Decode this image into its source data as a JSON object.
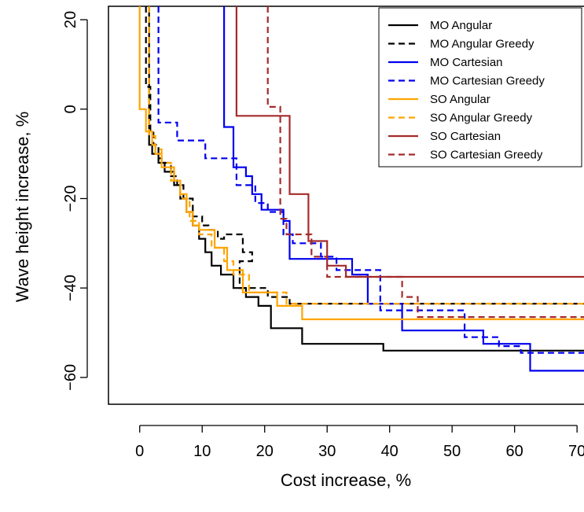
{
  "chart_data": {
    "type": "line",
    "title": "",
    "xlabel": "Cost increase, %",
    "ylabel": "Wave height increase, %",
    "xlim": [
      -5,
      73
    ],
    "ylim": [
      -66,
      23
    ],
    "xticks": [
      0,
      10,
      20,
      30,
      40,
      50,
      60,
      70
    ],
    "yticks": [
      -60,
      -40,
      -20,
      0,
      20
    ],
    "legend_position": "top-right",
    "grid": false,
    "series": [
      {
        "name": "MO Angular",
        "color": "#000000",
        "dash": "solid",
        "x": [
          1.5,
          1.5,
          2.0,
          2.0,
          3.0,
          3.0,
          4.0,
          4.0,
          5.5,
          5.5,
          6.5,
          6.5,
          7.5,
          7.5,
          8.5,
          8.5,
          9.5,
          9.5,
          10.5,
          10.5,
          11.5,
          11.5,
          13.0,
          13.0,
          15.0,
          15.0,
          17.0,
          17.0,
          19.0,
          19.0,
          21.0,
          21.0,
          26.0,
          26.0,
          39.0,
          39.0,
          73.0
        ],
        "y": [
          23,
          -8,
          -8,
          -10,
          -10,
          -12,
          -12,
          -14,
          -14,
          -17,
          -17,
          -20,
          -20,
          -23,
          -23,
          -26,
          -26,
          -29,
          -29,
          -32,
          -32,
          -35,
          -35,
          -37,
          -37,
          -40,
          -40,
          -42,
          -42,
          -44,
          -44,
          -49,
          -49,
          -52.5,
          -52.5,
          -54,
          -54
        ]
      },
      {
        "name": "MO Angular Greedy",
        "color": "#000000",
        "dash": "8,5",
        "x": [
          1.0,
          1.0,
          1.7,
          1.7,
          2.2,
          2.2,
          3.0,
          3.0,
          3.5,
          3.5,
          5.0,
          5.0,
          6.0,
          6.0,
          7.0,
          7.0,
          8.5,
          8.5,
          10.0,
          10.0,
          11.0,
          11.0,
          12.5,
          12.5,
          13.5,
          13.5,
          16.5,
          16.5,
          18.0,
          18.0,
          16.0,
          16.0,
          20.5,
          20.5,
          24.0,
          24.0,
          73.0
        ],
        "y": [
          23,
          5,
          5,
          -5,
          -5,
          -8,
          -8,
          -11,
          -11,
          -12,
          -12,
          -15,
          -15,
          -17,
          -17,
          -20,
          -20,
          -24,
          -24,
          -26,
          -26,
          -27,
          -27,
          -29,
          -29,
          -28,
          -28,
          -32,
          -32,
          -34,
          -34,
          -40,
          -40,
          -42,
          -42,
          -43.5,
          -43.5
        ]
      },
      {
        "name": "MO Cartesian",
        "color": "#0000ee",
        "dash": "solid",
        "x": [
          13.5,
          13.5,
          15.0,
          15.0,
          17.0,
          17.0,
          18.0,
          18.0,
          19.5,
          19.5,
          23.0,
          23.0,
          24.0,
          24.0,
          34.0,
          34.0,
          36.5,
          36.5,
          42.0,
          42.0,
          55.0,
          55.0,
          62.5,
          62.5,
          73.0
        ],
        "y": [
          23,
          -4,
          -4,
          -13,
          -13,
          -15,
          -15,
          -19,
          -19,
          -22.5,
          -22.5,
          -25,
          -25,
          -33.5,
          -33.5,
          -37,
          -37,
          -43.5,
          -43.5,
          -49.5,
          -49.5,
          -52.5,
          -52.5,
          -58.5,
          -58.5
        ]
      },
      {
        "name": "MO Cartesian Greedy",
        "color": "#0000ee",
        "dash": "8,5",
        "x": [
          3.0,
          3.0,
          6.0,
          6.0,
          10.5,
          10.5,
          15.5,
          15.5,
          18.5,
          18.5,
          20.5,
          20.5,
          23.0,
          23.0,
          24.5,
          24.5,
          29.0,
          29.0,
          31.5,
          31.5,
          38.5,
          38.5,
          52.0,
          52.0,
          57.5,
          57.5,
          61.0,
          61.0,
          73.0
        ],
        "y": [
          23,
          -3,
          -3,
          -7,
          -7,
          -11,
          -11,
          -17,
          -17,
          -21,
          -21,
          -23,
          -23,
          -28,
          -28,
          -30,
          -30,
          -33,
          -33,
          -36,
          -36,
          -45,
          -45,
          -51,
          -51,
          -53,
          -53,
          -54.5,
          -54.5
        ]
      },
      {
        "name": "SO Angular",
        "color": "#ffa500",
        "dash": "solid",
        "x": [
          0.0,
          0.0,
          1.0,
          1.0,
          2.0,
          2.0,
          2.5,
          2.5,
          3.5,
          3.5,
          5.5,
          5.5,
          6.5,
          6.5,
          7.5,
          7.5,
          8.5,
          8.5,
          9.5,
          9.5,
          12.0,
          12.0,
          14.0,
          14.0,
          16.5,
          16.5,
          22.0,
          22.0,
          26.0,
          26.0,
          73.0
        ],
        "y": [
          23,
          0,
          0,
          -5,
          -5,
          -8,
          -8,
          -10,
          -10,
          -13,
          -13,
          -16,
          -16,
          -19,
          -19,
          -23,
          -23,
          -26,
          -26,
          -27,
          -27,
          -31,
          -31,
          -36,
          -36,
          -41,
          -41,
          -44,
          -44,
          -47,
          -47
        ]
      },
      {
        "name": "SO Angular Greedy",
        "color": "#ffa500",
        "dash": "8,5",
        "x": [
          1.5,
          1.5,
          2.5,
          2.5,
          3.5,
          3.5,
          5.0,
          5.0,
          6.5,
          6.5,
          8.0,
          8.0,
          9.5,
          9.5,
          11.5,
          11.5,
          13.5,
          13.5,
          15.0,
          15.0,
          17.5,
          17.5,
          23.5,
          23.5,
          73.0
        ],
        "y": [
          23,
          -6,
          -6,
          -9,
          -9,
          -12,
          -12,
          -16,
          -16,
          -20,
          -20,
          -25,
          -25,
          -28,
          -28,
          -31,
          -31,
          -34,
          -34,
          -37,
          -37,
          -41,
          -41,
          -43.5,
          -43.5
        ]
      },
      {
        "name": "SO Cartesian",
        "color": "#a52a2a",
        "dash": "solid",
        "x": [
          15.5,
          15.5,
          24.0,
          24.0,
          27.0,
          27.0,
          30.0,
          30.0,
          33.0,
          33.0,
          37.0,
          37.0,
          73.0
        ],
        "y": [
          23,
          -1.5,
          -1.5,
          -19,
          -19,
          -29.5,
          -29.5,
          -35,
          -35,
          -37.5,
          -37.5,
          -37.5,
          -37.5
        ]
      },
      {
        "name": "SO Cartesian Greedy",
        "color": "#a52a2a",
        "dash": "8,5",
        "x": [
          20.5,
          20.5,
          22.5,
          22.5,
          23.5,
          23.5,
          27.5,
          27.5,
          30.0,
          30.0,
          42.0,
          42.0,
          44.5,
          44.5,
          73.0
        ],
        "y": [
          23,
          0.5,
          0.5,
          -24.5,
          -24.5,
          -28,
          -28,
          -33,
          -33,
          -37.5,
          -37.5,
          -42,
          -42,
          -46.5,
          -46.5
        ]
      }
    ]
  }
}
